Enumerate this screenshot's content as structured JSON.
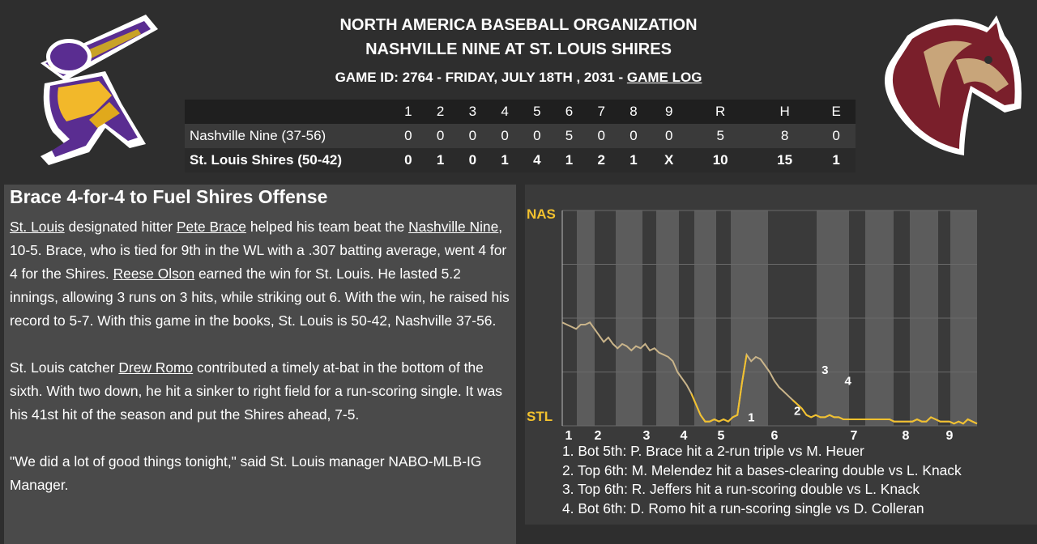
{
  "header": {
    "org": "NORTH AMERICA BASEBALL ORGANIZATION",
    "matchup": "NASHVILLE NINE AT ST. LOUIS SHIRES",
    "game_info": "GAME ID: 2764 - FRIDAY, JULY 18TH , 2031 - ",
    "game_log_link": "GAME LOG"
  },
  "logos": {
    "away": {
      "icon": "batter-logo-icon",
      "colors": [
        "#5a2d91",
        "#f2b82a"
      ]
    },
    "home": {
      "icon": "horse-head-logo-icon",
      "colors": [
        "#7a1f2b",
        "#c8a57a"
      ]
    }
  },
  "linescore": {
    "headers": [
      "1",
      "2",
      "3",
      "4",
      "5",
      "6",
      "7",
      "8",
      "9",
      "R",
      "H",
      "E"
    ],
    "rows": [
      {
        "team": "Nashville Nine (37-56)",
        "cells": [
          "0",
          "0",
          "0",
          "0",
          "0",
          "5",
          "0",
          "0",
          "0",
          "5",
          "8",
          "0"
        ]
      },
      {
        "team": "St. Louis Shires (50-42)",
        "cells": [
          "0",
          "1",
          "0",
          "1",
          "4",
          "1",
          "2",
          "1",
          "X",
          "10",
          "15",
          "1"
        ]
      }
    ]
  },
  "article": {
    "headline": "Brace 4-for-4 to Fuel Shires Offense",
    "p1": {
      "link1": "St. Louis",
      "t1": " designated hitter ",
      "link2": "Pete Brace",
      "t2": " helped his team beat the ",
      "link3": "Nashville Nine",
      "t3": ", 10-5. Brace, who is tied for 9th in the WL with a .307 batting average, went 4 for 4 for the Shires. ",
      "link4": "Reese Olson",
      "t4": " earned the win for St. Louis. He lasted 5.2 innings, allowing 3 runs on 3 hits, while striking out 6. With the win, he raised his record to 5-7. With this game in the books, St. Louis is 50-42, Nashville 37-56."
    },
    "p2": {
      "t1": "St. Louis catcher ",
      "link1": "Drew Romo",
      "t2": " contributed a timely at-bat in the bottom of the sixth. With two down, he hit a sinker to right field for a run-scoring single. It was his 41st hit of the season and put the Shires ahead, 7-5."
    },
    "p3": "\"We did a lot of good things tonight,\" said St. Louis manager NABO-MLB-IG Manager."
  },
  "chart_data": {
    "type": "line",
    "y_top_label": "NAS",
    "y_bottom_label": "STL",
    "ylim": [
      0,
      1
    ],
    "x_innings": [
      "1",
      "2",
      "3",
      "4",
      "5",
      "6",
      "7",
      "8",
      "9"
    ],
    "colors": {
      "line": "#f2c12e",
      "line_faded": "#c9b48a",
      "label": "#f2c12e",
      "grid": "#5a5a5a"
    },
    "series": [
      {
        "x": [
          0,
          1,
          2,
          3,
          4,
          5,
          6,
          7,
          8,
          9,
          10,
          11,
          12,
          13,
          14,
          15,
          16,
          17,
          18,
          19,
          20,
          21,
          22,
          23,
          24,
          25,
          26,
          27,
          28,
          29,
          30,
          31,
          32,
          33,
          34,
          35,
          36,
          37,
          38,
          39,
          40,
          41,
          42,
          43,
          44,
          45,
          46,
          47,
          48,
          49,
          50,
          51,
          52,
          53,
          54,
          55,
          56,
          57,
          58,
          59,
          60,
          61,
          62,
          63,
          64,
          65,
          66,
          67,
          68,
          69,
          70,
          71,
          72,
          73,
          74,
          75,
          76,
          77,
          78,
          79,
          80,
          81,
          82,
          83,
          84,
          85,
          86,
          87,
          88,
          89,
          90
        ],
        "y": [
          0.48,
          0.47,
          0.46,
          0.45,
          0.47,
          0.47,
          0.48,
          0.45,
          0.42,
          0.39,
          0.41,
          0.38,
          0.36,
          0.38,
          0.37,
          0.35,
          0.37,
          0.36,
          0.38,
          0.35,
          0.36,
          0.34,
          0.33,
          0.32,
          0.3,
          0.25,
          0.22,
          0.19,
          0.15,
          0.1,
          0.05,
          0.02,
          0.02,
          0.03,
          0.02,
          0.03,
          0.02,
          0.04,
          0.05,
          0.2,
          0.33,
          0.3,
          0.32,
          0.31,
          0.28,
          0.25,
          0.21,
          0.18,
          0.16,
          0.14,
          0.12,
          0.1,
          0.08,
          0.05,
          0.04,
          0.05,
          0.04,
          0.04,
          0.05,
          0.04,
          0.04,
          0.03,
          0.03,
          0.03,
          0.03,
          0.03,
          0.03,
          0.03,
          0.03,
          0.03,
          0.03,
          0.03,
          0.02,
          0.02,
          0.02,
          0.02,
          0.02,
          0.03,
          0.02,
          0.02,
          0.04,
          0.03,
          0.02,
          0.02,
          0.02,
          0.01,
          0.02,
          0.01,
          0.03,
          0.02,
          0.01
        ]
      }
    ],
    "events": [
      {
        "label": "1",
        "x": 41,
        "y": 0.02
      },
      {
        "label": "2",
        "x": 51,
        "y": 0.05
      },
      {
        "label": "3",
        "x": 57,
        "y": 0.24
      },
      {
        "label": "4",
        "x": 62,
        "y": 0.19
      }
    ],
    "legend": [
      "1. Bot 5th: P. Brace hit a 2-run triple vs M. Heuer",
      "2. Top 6th: M. Melendez hit a bases-clearing double vs L. Knack",
      "3. Top 6th: R. Jeffers hit a run-scoring double vs L. Knack",
      "4. Bot 6th: D. Romo hit a run-scoring single vs D. Colleran"
    ]
  }
}
